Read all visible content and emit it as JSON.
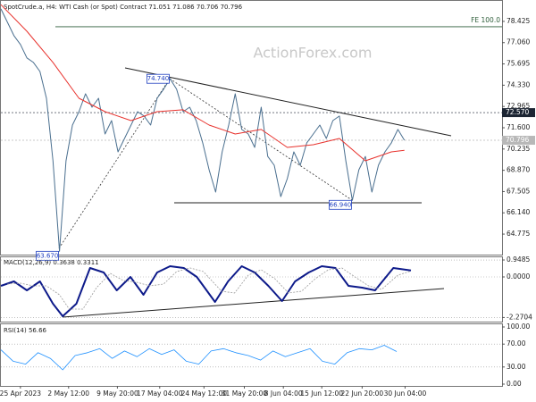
{
  "chart_data": [
    {
      "type": "line",
      "title": "SpotCrude.a, H4:  WTI Cash (or Spot) Contract  71.051 71.086 70.706 70.796",
      "watermark": "ActionForex.com",
      "xlim": [
        0,
        77
      ],
      "xticks": [
        {
          "value": 3,
          "label": "25 Apr 2023"
        },
        {
          "value": 10.4,
          "label": "2 May 12:00"
        },
        {
          "value": 17.9,
          "label": "9 May 20:00"
        },
        {
          "value": 24.4,
          "label": "17 May 04:00"
        },
        {
          "value": 31.2,
          "label": "24 May 12:00"
        },
        {
          "value": 37.4,
          "label": "31 May 20:00"
        },
        {
          "value": 43.4,
          "label": "8 Jun 04:00"
        },
        {
          "value": 49.3,
          "label": "15 Jun 12:00"
        },
        {
          "value": 55.5,
          "label": "22 Jun 20:00"
        },
        {
          "value": 62.1,
          "label": "30 Jun 04:00"
        }
      ],
      "ylim": [
        63.46,
        79.51
      ],
      "yticks": [
        78.425,
        {
          "value": 77.06,
          "label": "77.060"
        },
        75.695,
        {
          "value": 74.33,
          "label": "74.330"
        },
        72.965,
        {
          "value": 71.6,
          "label": "71.600"
        },
        70.235,
        {
          "value": 68.87,
          "label": "68.870"
        },
        67.505,
        {
          "value": 66.14,
          "label": "66.140"
        },
        64.775
      ],
      "grid": false,
      "series": [
        {
          "color": "#4a6f8f",
          "x": [
            0,
            1,
            2,
            3,
            4,
            5,
            6,
            7,
            8,
            9,
            10,
            11,
            12,
            13,
            14,
            15,
            16,
            17,
            18,
            19,
            20,
            21,
            22,
            23,
            24,
            25,
            26,
            27,
            28,
            29,
            30,
            31,
            32,
            33,
            34,
            35,
            36,
            37,
            38,
            39,
            40,
            41,
            42,
            43,
            44,
            45,
            46,
            47,
            48,
            49,
            50,
            51,
            52,
            53,
            54,
            55,
            56,
            57,
            58,
            59,
            60,
            61,
            62
          ],
          "values": [
            79.23,
            78.37,
            77.51,
            76.94,
            76.08,
            75.79,
            75.21,
            73.49,
            69.48,
            63.67,
            69.48,
            71.77,
            72.63,
            73.78,
            72.92,
            73.49,
            71.2,
            72.06,
            70.05,
            70.91,
            71.77,
            72.63,
            72.35,
            71.77,
            73.49,
            74.07,
            74.74,
            74.07,
            72.63,
            72.92,
            72.06,
            70.63,
            68.9,
            67.47,
            70.05,
            71.77,
            73.78,
            71.49,
            71.2,
            70.34,
            72.92,
            69.76,
            69.19,
            67.18,
            68.33,
            70.05,
            69.19,
            70.63,
            71.2,
            71.77,
            70.91,
            72.06,
            72.35,
            69.48,
            66.94,
            68.9,
            69.76,
            67.47,
            69.19,
            70.05,
            70.63,
            71.49,
            70.8
          ]
        },
        {
          "color": "#e8322d",
          "x": [
            0,
            4,
            8,
            12,
            16,
            20,
            24,
            28,
            32,
            36,
            40,
            44,
            48,
            52,
            56,
            60,
            62
          ],
          "values": [
            79.5,
            77.79,
            75.79,
            73.49,
            72.63,
            72.06,
            72.63,
            72.75,
            71.77,
            71.2,
            71.49,
            70.34,
            70.51,
            70.91,
            69.48,
            70.05,
            70.15
          ]
        }
      ],
      "annotations": [
        {
          "label": "74.740",
          "value": 74.74,
          "x": 26
        },
        {
          "label": "63.670",
          "value": 63.67,
          "x": 9
        },
        {
          "label": "66.940",
          "value": 66.94,
          "x": 54
        }
      ],
      "levels": [
        {
          "label": "72.570",
          "value": 72.57,
          "color": "#1c2533"
        },
        {
          "label": "70.796",
          "value": 70.796,
          "color": "#b8b8b8"
        }
      ],
      "fe": {
        "label": "FE 100.0",
        "value": 78.08
      }
    },
    {
      "type": "line",
      "title": "MACD(12,26,9) 0.3638 0.3311",
      "ylim": [
        -2.4,
        1.1
      ],
      "yticks": [
        0.9485,
        {
          "value": 0,
          "label": "0.0000"
        },
        -2.2704
      ],
      "grid": true,
      "series": [
        {
          "color": "#0d1a8a",
          "width": 2,
          "x": [
            0,
            2,
            4,
            6,
            8,
            9.5,
            11.6,
            13.7,
            15.8,
            17.8,
            19.9,
            21.9,
            24,
            26,
            28.1,
            30.1,
            32.9,
            34.9,
            37,
            39,
            41.1,
            43.2,
            45.2,
            47.3,
            49.3,
            51.4,
            53.4,
            55.5,
            57.5,
            60.3,
            63
          ],
          "values": [
            -0.5,
            -0.25,
            -0.75,
            -0.25,
            -1.5,
            -2.2,
            -1.5,
            0.5,
            0.25,
            -0.75,
            0,
            -1.0,
            0.25,
            0.6,
            0.5,
            0,
            -1.4,
            -0.25,
            0.6,
            0.25,
            -0.5,
            -1.35,
            -0.25,
            0.25,
            0.6,
            0.5,
            -0.5,
            -0.6,
            -0.75,
            0.5,
            0.36
          ]
        },
        {
          "color": "#9a9a9a",
          "width": 0.8,
          "dashed": true,
          "x": [
            1,
            3,
            5,
            7,
            9,
            10.5,
            12.6,
            14.7,
            16.8,
            18.8,
            20.9,
            22.9,
            25,
            27,
            29.1,
            31.1,
            33.9,
            35.9,
            38,
            40,
            42.1,
            44.2,
            46.2,
            48.3,
            50.3,
            52.4,
            54.4,
            56.5,
            58.5,
            61,
            63
          ],
          "values": [
            -0.4,
            -0.35,
            -0.5,
            -0.5,
            -1.0,
            -1.8,
            -1.8,
            -0.6,
            0.2,
            -0.2,
            -0.3,
            -0.5,
            -0.4,
            0.3,
            0.5,
            0.3,
            -0.8,
            -0.9,
            0.1,
            0.4,
            -0.1,
            -0.9,
            -0.8,
            -0.1,
            0.4,
            0.5,
            0.0,
            -0.5,
            -0.7,
            0.1,
            0.33
          ]
        }
      ]
    },
    {
      "type": "line",
      "title": "RSI(14) 56.66",
      "ylim": [
        0,
        100
      ],
      "yticks": [
        {
          "value": 100,
          "label": "100.00"
        },
        {
          "value": 70,
          "label": "70.00"
        },
        {
          "value": 30,
          "label": "30.00"
        },
        {
          "value": 0,
          "label": "0.00"
        }
      ],
      "grid": true,
      "series": [
        {
          "color": "#1e90ff",
          "width": 0.8,
          "x": [
            0,
            1.9,
            3.8,
            5.7,
            7.6,
            9.5,
            11.4,
            13.3,
            15.2,
            17.1,
            19,
            20.9,
            22.8,
            24.7,
            26.6,
            28.5,
            30.4,
            32.3,
            34.2,
            36.1,
            38,
            39.9,
            41.8,
            43.7,
            45.6,
            47.5,
            49.4,
            51.3,
            53.2,
            55.1,
            57,
            58.9,
            60.8
          ],
          "values": [
            60,
            40,
            35,
            55,
            45,
            25,
            50,
            55,
            62,
            45,
            58,
            48,
            62,
            52,
            60,
            40,
            35,
            58,
            62,
            55,
            50,
            42,
            58,
            48,
            55,
            62,
            40,
            35,
            55,
            62,
            60,
            68,
            57
          ]
        }
      ]
    }
  ]
}
